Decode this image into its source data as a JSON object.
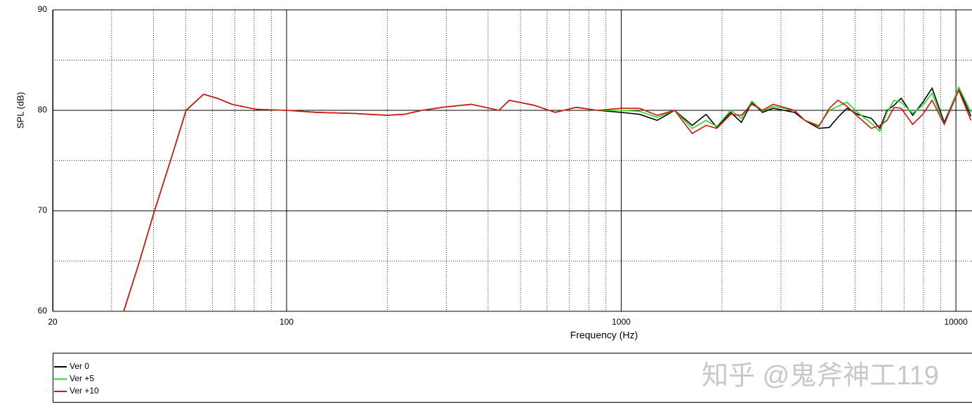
{
  "chart_data": {
    "type": "line",
    "x_label": "Frequency (Hz)",
    "y_label": "SPL (dB)",
    "log_x": true,
    "grid": true,
    "legend": "bottom",
    "watermark": "知乎 @鬼斧神工119",
    "xlim": [
      20,
      11170
    ],
    "ylim": [
      60,
      90
    ],
    "xticks": [
      20,
      100,
      1000,
      10000
    ],
    "xminor": [
      30,
      40,
      50,
      60,
      70,
      80,
      90,
      200,
      300,
      400,
      500,
      600,
      700,
      800,
      900,
      2000,
      3000,
      4000,
      5000,
      6000,
      7000,
      8000,
      9000
    ],
    "yticks": [
      60,
      70,
      80,
      90
    ],
    "yminor": [
      65,
      75,
      85
    ],
    "x": [
      32.6,
      36,
      40.3,
      45,
      50.1,
      56.5,
      62,
      68.6,
      81.2,
      100,
      123,
      157,
      199,
      225,
      254,
      293,
      356,
      431,
      463,
      549,
      635,
      734,
      848,
      1000,
      1134,
      1280,
      1444,
      1629,
      1793,
      1929,
      2124,
      2285,
      2457,
      2643,
      2844,
      3290,
      3537,
      3896,
      4187,
      4439,
      4727,
      5083,
      5590,
      5924,
      6224,
      6537,
      6861,
      7426,
      7961,
      8487,
      9230,
      10195,
      11090
    ],
    "series": [
      {
        "name": "Ver 0",
        "color": "#000000",
        "values": [
          60,
          64.5,
          70,
          75,
          80,
          81.6,
          81.2,
          80.6,
          80.1,
          80.0,
          79.8,
          79.7,
          79.5,
          79.6,
          80.0,
          80.3,
          80.6,
          80.0,
          81.0,
          80.5,
          79.8,
          80.3,
          80.0,
          79.8,
          79.6,
          79.0,
          80.0,
          78.5,
          79.6,
          78.3,
          79.8,
          78.8,
          80.8,
          79.8,
          80.2,
          79.8,
          79.0,
          78.2,
          78.3,
          79.3,
          80.2,
          79.6,
          79.2,
          78.2,
          80.0,
          80.5,
          81.2,
          79.5,
          80.8,
          82.2,
          78.8,
          82.2,
          79.4
        ]
      },
      {
        "name": "Ver +5",
        "color": "#22dd22",
        "values": [
          60,
          64.5,
          70,
          75,
          80,
          81.6,
          81.2,
          80.6,
          80.1,
          80.0,
          79.8,
          79.7,
          79.5,
          79.6,
          80.0,
          80.3,
          80.6,
          80.0,
          81.0,
          80.5,
          79.8,
          80.3,
          80.0,
          80.0,
          79.9,
          79.3,
          80.0,
          78.2,
          79.0,
          78.4,
          80.0,
          79.2,
          80.9,
          79.9,
          80.4,
          80.0,
          79.0,
          78.5,
          80.0,
          80.4,
          80.8,
          79.8,
          78.7,
          77.9,
          79.8,
          81.0,
          80.8,
          79.7,
          80.5,
          81.7,
          78.6,
          82.3,
          79.8
        ]
      },
      {
        "name": "Ver +10",
        "color": "#dd1111",
        "values": [
          60,
          64.5,
          70,
          75,
          80,
          81.6,
          81.2,
          80.6,
          80.1,
          80.0,
          79.8,
          79.7,
          79.5,
          79.6,
          80.0,
          80.3,
          80.6,
          80.0,
          81.0,
          80.5,
          79.8,
          80.3,
          80.0,
          80.2,
          80.2,
          79.5,
          80.0,
          77.7,
          78.5,
          78.2,
          79.6,
          79.5,
          80.6,
          80.0,
          80.6,
          80.0,
          79.0,
          78.4,
          80.2,
          81.0,
          80.4,
          79.4,
          78.2,
          78.5,
          79.0,
          80.3,
          80.2,
          78.6,
          79.6,
          81.0,
          78.6,
          82.0,
          79.0
        ]
      }
    ]
  }
}
